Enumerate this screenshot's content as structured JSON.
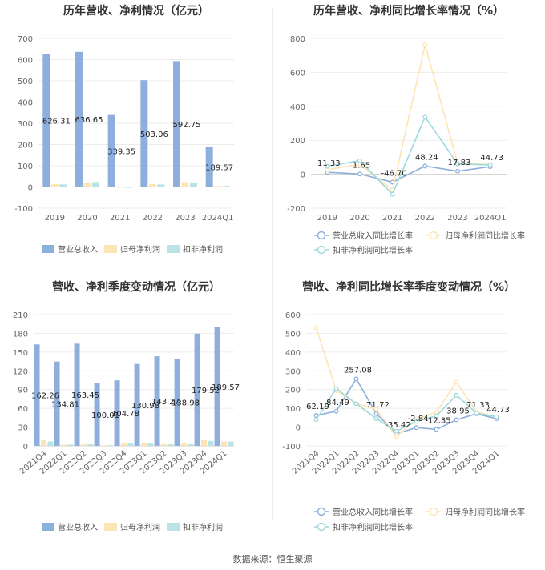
{
  "source": "数据来源：恒生聚源",
  "chart_data": [
    {
      "type": "bar",
      "title": "历年营收、净利情况（亿元）",
      "categories": [
        "2019",
        "2020",
        "2021",
        "2022",
        "2023",
        "2024Q1"
      ],
      "ylim": [
        -100,
        700
      ],
      "yticks": [
        "-100",
        "0",
        "100",
        "200",
        "300",
        "400",
        "500",
        "600",
        "700"
      ],
      "legend_position": "bottom",
      "series": [
        {
          "name": "营业总收入",
          "color": "#8eaedc",
          "values": [
            626.31,
            636.65,
            339.35,
            503.06,
            592.75,
            189.57
          ],
          "labels": [
            "626.31",
            "636.65",
            "339.35",
            "503.06",
            "592.75",
            "189.57"
          ]
        },
        {
          "name": "归母净利润",
          "color": "#fde4b4",
          "values": [
            13,
            20,
            -2,
            14,
            23,
            5
          ]
        },
        {
          "name": "扣非净利润",
          "color": "#b8e4e6",
          "values": [
            12,
            23,
            -4,
            12,
            21,
            5
          ]
        }
      ]
    },
    {
      "type": "line",
      "title": "历年营收、净利同比增长率情况（%）",
      "categories": [
        "2019",
        "2020",
        "2021",
        "2022",
        "2023",
        "2024Q1"
      ],
      "ylim": [
        -200,
        800
      ],
      "yticks": [
        "-200",
        "0",
        "200",
        "400",
        "600",
        "800"
      ],
      "legend_position": "bottom",
      "series": [
        {
          "name": "营业总收入同比增长率",
          "color": "#8eaedc",
          "values": [
            11.33,
            1.65,
            -46.7,
            48.24,
            17.83,
            44.73
          ],
          "labels": [
            "11.33",
            "1.65",
            "-46.70",
            "48.24",
            "17.83",
            "44.73"
          ]
        },
        {
          "name": "归母净利润同比增长率",
          "color": "#fde4b4",
          "values": [
            27,
            58,
            -93,
            762,
            63,
            58
          ]
        },
        {
          "name": "扣非净利润同比增长率",
          "color": "#9ed9dc",
          "values": [
            47,
            80,
            -118,
            337,
            60,
            55
          ]
        }
      ]
    },
    {
      "type": "bar",
      "title": "营收、净利季度变动情况（亿元）",
      "categories": [
        "2021Q4",
        "2022Q1",
        "2022Q2",
        "2022Q3",
        "2022Q4",
        "2023Q1",
        "2023Q2",
        "2023Q3",
        "2023Q4",
        "2024Q1"
      ],
      "ylim": [
        0,
        210
      ],
      "yticks": [
        "0",
        "30",
        "60",
        "90",
        "120",
        "150",
        "180",
        "210"
      ],
      "legend_position": "bottom",
      "series": [
        {
          "name": "营业总收入",
          "color": "#8eaedc",
          "values": [
            162.26,
            134.81,
            163.45,
            100.01,
            104.78,
            130.98,
            143.27,
            138.98,
            179.52,
            189.57
          ],
          "labels": [
            "162.26",
            "134.81",
            "163.45",
            "100.01",
            "104.78",
            "130.98",
            "143.27",
            "138.98",
            "179.52",
            "189.57"
          ]
        },
        {
          "name": "归母净利润",
          "color": "#fde4b4",
          "values": [
            10,
            2,
            3,
            1,
            5,
            5,
            4,
            5,
            9,
            7
          ]
        },
        {
          "name": "扣非净利润",
          "color": "#b8e4e6",
          "values": [
            7,
            2,
            3,
            1,
            5,
            5,
            4,
            4,
            8,
            7
          ]
        }
      ]
    },
    {
      "type": "line",
      "title": "营收、净利同比增长率季度变动情况（%）",
      "categories": [
        "2021Q4",
        "2022Q1",
        "2022Q2",
        "2022Q3",
        "2022Q4",
        "2023Q1",
        "2023Q2",
        "2023Q3",
        "2023Q4",
        "2024Q1"
      ],
      "ylim": [
        -100,
        600
      ],
      "yticks": [
        "-100",
        "0",
        "100",
        "200",
        "300",
        "400",
        "500",
        "600"
      ],
      "legend_position": "bottom",
      "series": [
        {
          "name": "营业总收入同比增长率",
          "color": "#8eaedc",
          "values": [
            62.19,
            84.49,
            257.08,
            71.72,
            -35.42,
            -2.84,
            -12.35,
            38.95,
            71.33,
            44.73
          ],
          "labels": [
            "62.19",
            "84.49",
            "257.08",
            "71.72",
            "-35.42",
            "-2.84",
            "-12.35",
            "38.95",
            "71.33",
            "44.73"
          ]
        },
        {
          "name": "归母净利润同比增长率",
          "color": "#fde4b4",
          "values": [
            530,
            195,
            125,
            95,
            -50,
            40,
            80,
            240,
            80,
            55
          ]
        },
        {
          "name": "扣非净利润同比增长率",
          "color": "#9ed9dc",
          "values": [
            40,
            205,
            125,
            45,
            -22,
            30,
            60,
            170,
            75,
            55
          ]
        }
      ]
    }
  ]
}
